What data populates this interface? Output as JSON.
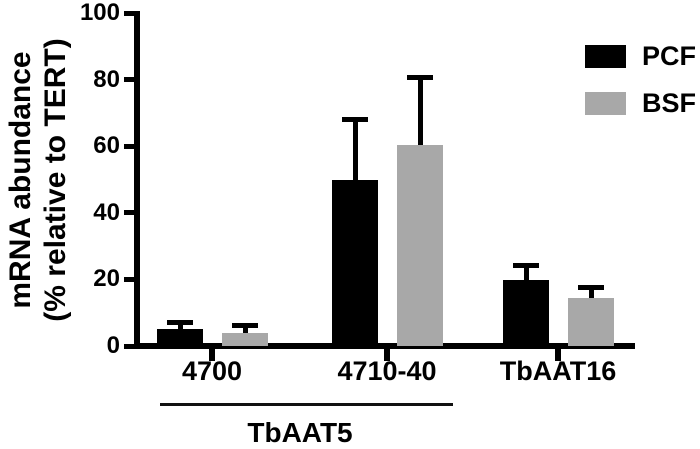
{
  "figure": {
    "ylabel_line1": "mRNA abundance",
    "ylabel_line2": "(% relative to TERT)",
    "legend": [
      {
        "label": "PCF",
        "color": "#000000"
      },
      {
        "label": "BSF",
        "color": "#a8a8a8"
      }
    ],
    "bracket_label": "TbAAT5"
  },
  "chart_data": {
    "type": "bar",
    "title": "",
    "xlabel": "",
    "ylabel": "mRNA abundance (% relative to TERT)",
    "ylim": [
      0,
      100
    ],
    "yticks": [
      100,
      80,
      60,
      40,
      20,
      0
    ],
    "categories": [
      "4700",
      "4710-40",
      "TbAAT16"
    ],
    "series": [
      {
        "name": "PCF",
        "color": "#000000",
        "values": [
          5.2,
          49.8,
          19.7
        ],
        "errors_upper": [
          2.1,
          18.3,
          4.5
        ]
      },
      {
        "name": "BSF",
        "color": "#a8a8a8",
        "values": [
          3.8,
          60.5,
          14.3
        ],
        "errors_upper": [
          2.4,
          20.4,
          3.4
        ]
      }
    ],
    "group_annotation": {
      "label": "TbAAT5",
      "covers_categories": [
        "4700",
        "4710-40"
      ]
    },
    "legend_position": "top-right",
    "grid": false,
    "error_bars": "upper-only"
  }
}
